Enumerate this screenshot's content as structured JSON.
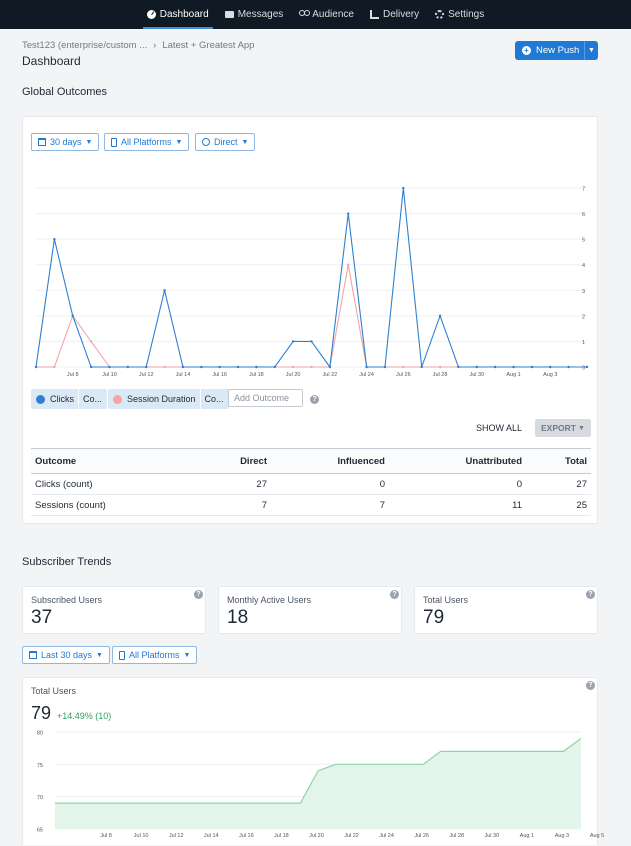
{
  "nav": {
    "items": [
      {
        "label": "Dashboard",
        "icon": "dashboard-icon",
        "active": true
      },
      {
        "label": "Messages",
        "icon": "messages-icon"
      },
      {
        "label": "Audience",
        "icon": "audience-icon"
      },
      {
        "label": "Delivery",
        "icon": "delivery-icon"
      },
      {
        "label": "Settings",
        "icon": "settings-icon"
      }
    ]
  },
  "breadcrumb": {
    "org": "Test123 (enterprise/custom ...",
    "separator": "›",
    "app": "Latest + Greatest App"
  },
  "page": {
    "title": "Dashboard"
  },
  "new_push": {
    "label": "New Push"
  },
  "global_outcomes": {
    "title": "Global Outcomes",
    "filters": {
      "range": "30 days",
      "platform": "All Platforms",
      "attribution": "Direct"
    },
    "legend": [
      {
        "name": "Clicks",
        "suffix": "Co...",
        "color": "#2f7fd0"
      },
      {
        "name": "Session Duration",
        "suffix": "Co...",
        "color": "#f2a5a5"
      }
    ],
    "add_outcome_placeholder": "Add Outcome",
    "show_all": "SHOW ALL",
    "export": "EXPORT",
    "table": {
      "headers": [
        "Outcome",
        "Direct",
        "Influenced",
        "Unattributed",
        "Total"
      ],
      "rows": [
        [
          "Clicks (count)",
          "27",
          "0",
          "0",
          "27"
        ],
        [
          "Sessions (count)",
          "7",
          "7",
          "11",
          "25"
        ]
      ]
    }
  },
  "subscriber_trends": {
    "title": "Subscriber Trends",
    "stats": [
      {
        "label": "Subscribed Users",
        "value": "37"
      },
      {
        "label": "Monthly Active Users",
        "value": "18"
      },
      {
        "label": "Total Users",
        "value": "79"
      }
    ],
    "filters": {
      "range": "Last 30 days",
      "platform": "All Platforms"
    },
    "total_users": {
      "label": "Total Users",
      "value": "79",
      "change": "+14.49% (10)"
    }
  },
  "colors": {
    "accent": "#1f7ad6",
    "clicks": "#2f7fd0",
    "sessions": "#f2a5a5",
    "area": "#e3f4ea",
    "area_line": "#8fd3a8",
    "positive": "#2fa25a"
  },
  "chart_data": [
    {
      "type": "line",
      "x": [
        "Jul 6",
        "Jul 7",
        "Jul 8",
        "Jul 9",
        "Jul 10",
        "Jul 11",
        "Jul 12",
        "Jul 13",
        "Jul 14",
        "Jul 15",
        "Jul 16",
        "Jul 17",
        "Jul 18",
        "Jul 19",
        "Jul 20",
        "Jul 21",
        "Jul 22",
        "Jul 23",
        "Jul 24",
        "Jul 25",
        "Jul 26",
        "Jul 27",
        "Jul 28",
        "Jul 29",
        "Jul 30",
        "Jul 31",
        "Aug 1",
        "Aug 2",
        "Aug 3",
        "Aug 4",
        "Aug 5"
      ],
      "x_tick_labels": [
        "Jul 8",
        "Jul 10",
        "Jul 12",
        "Jul 14",
        "Jul 16",
        "Jul 18",
        "Jul 20",
        "Jul 22",
        "Jul 24",
        "Jul 26",
        "Jul 28",
        "Jul 30",
        "Aug 1",
        "Aug 3"
      ],
      "y_tick_labels": [
        "0",
        "1",
        "2",
        "3",
        "4",
        "5",
        "6",
        "7"
      ],
      "ylim": [
        0,
        7.9
      ],
      "series": [
        {
          "name": "Clicks",
          "values": [
            0,
            5,
            2,
            0,
            0,
            0,
            0,
            3,
            0,
            0,
            0,
            0,
            0,
            0,
            1,
            1,
            0,
            6,
            0,
            0,
            7,
            0,
            2,
            0,
            0,
            0,
            0,
            0,
            0,
            0,
            0
          ]
        },
        {
          "name": "Session Duration",
          "values": [
            0,
            0,
            2,
            1,
            0,
            0,
            0,
            0,
            0,
            0,
            0,
            0,
            0,
            0,
            0,
            0,
            0,
            4,
            0,
            0,
            0,
            0,
            0,
            0,
            0,
            0,
            0,
            0,
            0,
            0,
            0
          ]
        }
      ],
      "grid": true
    },
    {
      "type": "area",
      "x": [
        "Jul 6",
        "Jul 7",
        "Jul 8",
        "Jul 9",
        "Jul 10",
        "Jul 11",
        "Jul 12",
        "Jul 13",
        "Jul 14",
        "Jul 15",
        "Jul 16",
        "Jul 17",
        "Jul 18",
        "Jul 19",
        "Jul 20",
        "Jul 21",
        "Jul 22",
        "Jul 23",
        "Jul 24",
        "Jul 25",
        "Jul 26",
        "Jul 27",
        "Jul 28",
        "Jul 29",
        "Jul 30",
        "Jul 31",
        "Aug 1",
        "Aug 2",
        "Aug 3",
        "Aug 4",
        "Aug 5"
      ],
      "x_tick_labels": [
        "Jul 8",
        "Jul 10",
        "Jul 12",
        "Jul 14",
        "Jul 16",
        "Jul 18",
        "Jul 20",
        "Jul 22",
        "Jul 24",
        "Jul 26",
        "Jul 28",
        "Jul 30",
        "Aug 1",
        "Aug 3",
        "Aug 5"
      ],
      "y_tick_labels": [
        "65",
        "70",
        "75",
        "80"
      ],
      "ylim": [
        65,
        80
      ],
      "series": [
        {
          "name": "Total Users",
          "values": [
            69,
            69,
            69,
            69,
            69,
            69,
            69,
            69,
            69,
            69,
            69,
            69,
            69,
            69,
            69,
            74,
            75,
            75,
            75,
            75,
            75,
            75,
            77,
            77,
            77,
            77,
            77,
            77,
            77,
            77,
            79
          ]
        }
      ],
      "grid": true
    }
  ]
}
